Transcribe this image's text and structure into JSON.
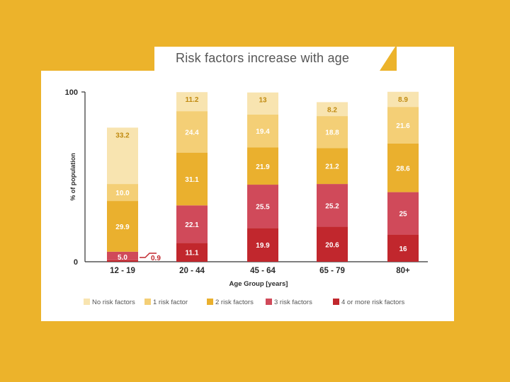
{
  "chart_data": {
    "type": "bar",
    "stacked": true,
    "title": "Risk factors increase with age",
    "xlabel": "Age Group [years]",
    "ylabel": "% of population",
    "ylim": [
      0,
      100
    ],
    "yticks": [
      "0",
      "100"
    ],
    "categories": [
      "12 - 19",
      "20 - 44",
      "45 - 64",
      "65 - 79",
      "80+"
    ],
    "series": [
      {
        "name": "4 or more risk factors",
        "color": "#c1272d",
        "values": [
          0.9,
          11.1,
          19.9,
          20.6,
          16
        ],
        "labels": [
          "0.9",
          "11.1",
          "19.9",
          "20.6",
          "16"
        ]
      },
      {
        "name": "3 risk factors",
        "color": "#d04a5a",
        "values": [
          5.0,
          22.1,
          25.5,
          25.2,
          25
        ],
        "labels": [
          "5.0",
          "22.1",
          "25.5",
          "25.2",
          "25"
        ]
      },
      {
        "name": "2 risk factors",
        "color": "#eab02e",
        "values": [
          29.9,
          31.1,
          21.9,
          21.2,
          28.6
        ],
        "labels": [
          "29.9",
          "31.1",
          "21.9",
          "21.2",
          "28.6"
        ]
      },
      {
        "name": "1 risk factor",
        "color": "#f4cf76",
        "values": [
          10.0,
          24.4,
          19.4,
          18.8,
          21.6
        ],
        "labels": [
          "10.0",
          "24.4",
          "19.4",
          "18.8",
          "21.6"
        ]
      },
      {
        "name": "No risk factors",
        "color": "#f8e4b0",
        "values": [
          33.2,
          11.2,
          13,
          8.2,
          8.9
        ],
        "labels": [
          "33.2",
          "11.2",
          "13",
          "8.2",
          "8.9"
        ]
      }
    ],
    "legend_order": [
      "No risk factors",
      "1 risk factor",
      "2 risk factors",
      "3 risk factors",
      "4 or more risk factors"
    ],
    "legend_position": "bottom",
    "label_color": "#ffffff",
    "light_label_color": "#c08a10",
    "annotation_color": "#c1272d"
  }
}
